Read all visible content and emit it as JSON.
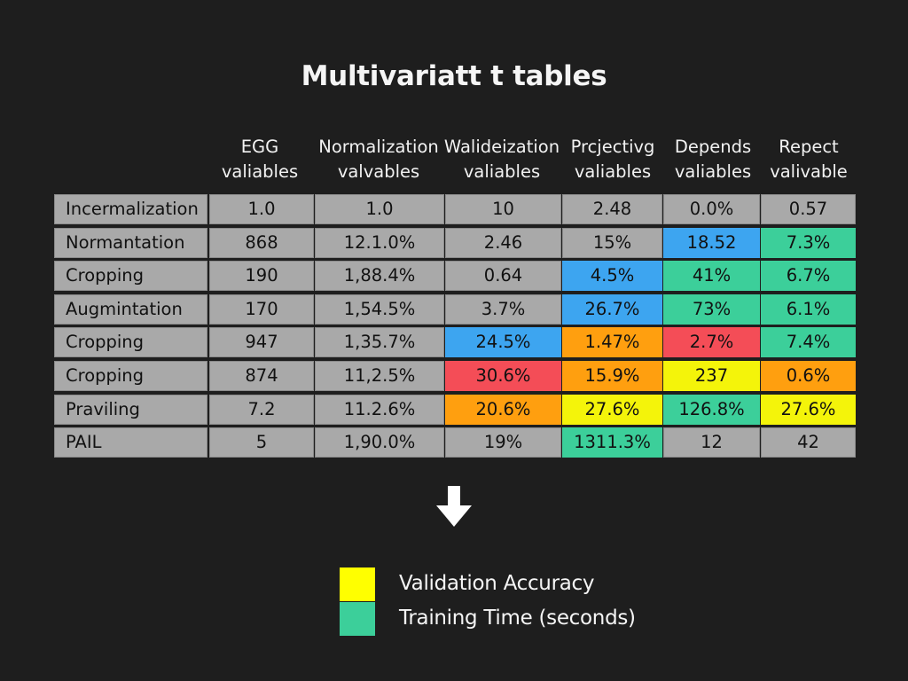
{
  "chart_data": {
    "type": "table",
    "title": "Multivariatt t tables",
    "columns": [
      {
        "line1": "EGG",
        "line2": "valiables"
      },
      {
        "line1": "Normalization",
        "line2": "valvables"
      },
      {
        "line1": "Walideization",
        "line2": "valiables"
      },
      {
        "line1": "Prcjectivg",
        "line2": "valiables"
      },
      {
        "line1": "Depends",
        "line2": "valiables"
      },
      {
        "line1": "Repect",
        "line2": "valivable"
      }
    ],
    "rows": [
      {
        "label": "Incermalization",
        "values": [
          "1.0",
          "1.0",
          "10",
          "2.48",
          "0.0%",
          "0.57"
        ],
        "colors": [
          "gray",
          "gray",
          "gray",
          "gray",
          "gray",
          "gray"
        ]
      },
      {
        "label": "Normantation",
        "values": [
          "868",
          "12.1.0%",
          "2.46",
          "15%",
          "18.52",
          "7.3%"
        ],
        "colors": [
          "gray",
          "gray",
          "gray",
          "gray",
          "blue",
          "green"
        ]
      },
      {
        "label": "Cropping",
        "values": [
          "190",
          "1,88.4%",
          "0.64",
          "4.5%",
          "41%",
          "6.7%"
        ],
        "colors": [
          "gray",
          "gray",
          "gray",
          "blue",
          "green",
          "green"
        ]
      },
      {
        "label": "Augmintation",
        "values": [
          "170",
          "1,54.5%",
          "3.7%",
          "26.7%",
          "73%",
          "6.1%"
        ],
        "colors": [
          "gray",
          "gray",
          "gray",
          "blue",
          "green",
          "green"
        ]
      },
      {
        "label": "Cropping",
        "values": [
          "947",
          "1,35.7%",
          "24.5%",
          "1.47%",
          "2.7%",
          "7.4%"
        ],
        "colors": [
          "gray",
          "gray",
          "blue",
          "orange",
          "red",
          "green"
        ]
      },
      {
        "label": "Cropping",
        "values": [
          "874",
          "11,2.5%",
          "30.6%",
          "15.9%",
          "237",
          "0.6%"
        ],
        "colors": [
          "gray",
          "gray",
          "red",
          "orange",
          "yellow",
          "orange"
        ]
      },
      {
        "label": "Praviling",
        "values": [
          "7.2",
          "11.2.6%",
          "20.6%",
          "27.6%",
          "126.8%",
          "27.6%"
        ],
        "colors": [
          "gray",
          "gray",
          "orange",
          "yellow",
          "green",
          "yellow"
        ]
      },
      {
        "label": "PAIL",
        "values": [
          "5",
          "1,90.0%",
          "19%",
          "1311.3%",
          "12",
          "42"
        ],
        "colors": [
          "gray",
          "gray",
          "gray",
          "green",
          "gray",
          "gray"
        ]
      }
    ],
    "color_map": {
      "gray": "#a9a9a9",
      "blue": "#3da5f0",
      "green": "#3ccf9a",
      "orange": "#ff9f0f",
      "red": "#f44d57",
      "yellow": "#f4f40a"
    },
    "legend": [
      {
        "label": "Validation Accuracy",
        "color": "#ffff00"
      },
      {
        "label": "Training Time (seconds)",
        "color": "#3ccf9a"
      }
    ]
  },
  "decor": {
    "arrow_icon": "down-arrow-icon",
    "background_color": "#1e1e1e"
  }
}
